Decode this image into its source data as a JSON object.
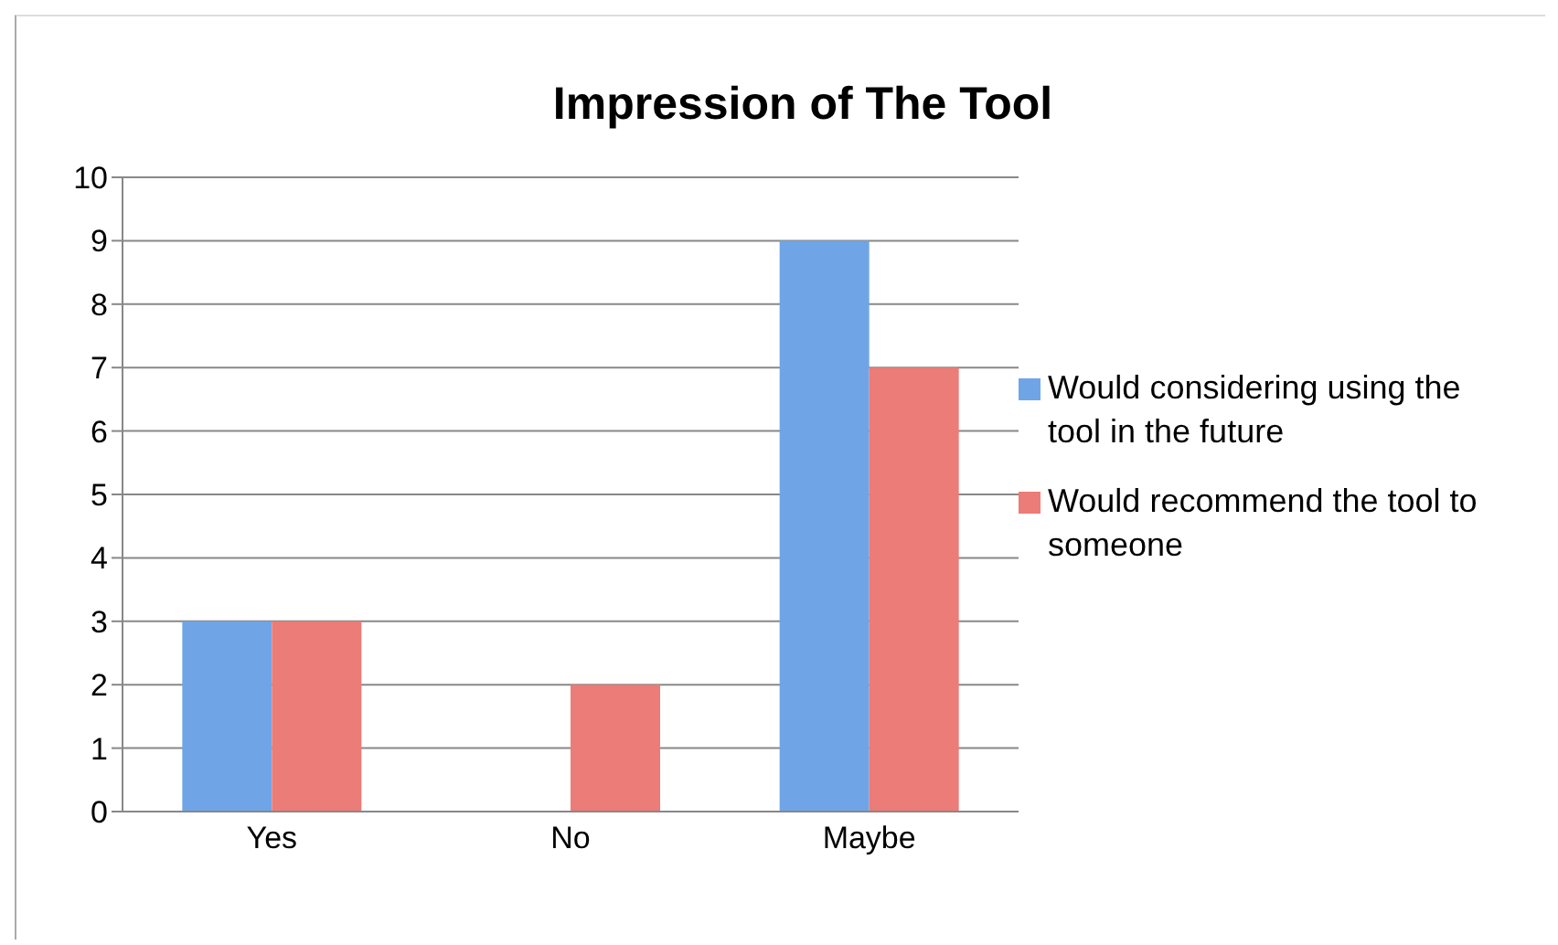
{
  "chart_data": {
    "type": "bar",
    "title": "Impression of The Tool",
    "categories": [
      "Yes",
      "No",
      "Maybe"
    ],
    "series": [
      {
        "name": "Would considering using the tool in the future",
        "color": "#6fa5e6",
        "values": [
          3,
          0,
          9
        ]
      },
      {
        "name": "Would recommend the tool to someone",
        "color": "#ec7c77",
        "values": [
          3,
          2,
          7
        ]
      }
    ],
    "ylim": [
      0,
      10
    ],
    "yticks": [
      0,
      1,
      2,
      3,
      4,
      5,
      6,
      7,
      8,
      9,
      10
    ],
    "grid": "y",
    "legend": "right"
  }
}
